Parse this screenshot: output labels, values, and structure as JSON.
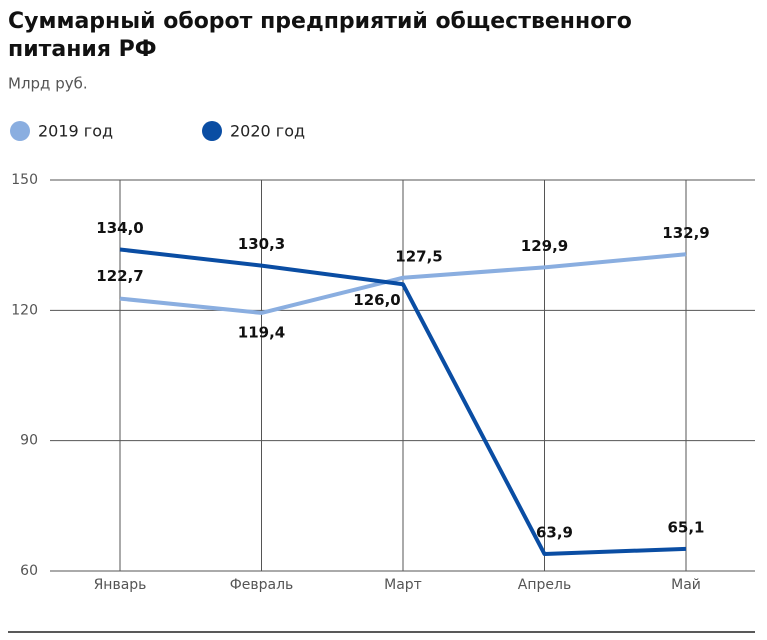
{
  "chart_data": {
    "type": "line",
    "title": "Суммарный оборот предприятий общественного питания РФ",
    "subtitle": "Млрд руб.",
    "categories": [
      "Январь",
      "Февраль",
      "Март",
      "Апрель",
      "Май"
    ],
    "series": [
      {
        "name": "2019 год",
        "color": "#8aaee0",
        "values": [
          122.7,
          119.4,
          127.5,
          129.9,
          132.9
        ],
        "value_labels": [
          "122,7",
          "119,4",
          "127,5",
          "129,9",
          "132,9"
        ]
      },
      {
        "name": "2020 год",
        "color": "#0a4da3",
        "values": [
          134.0,
          130.3,
          126.0,
          63.9,
          65.1
        ],
        "value_labels": [
          "134,0",
          "130,3",
          "126,0",
          "63,9",
          "65,1"
        ]
      }
    ],
    "ylim": [
      60,
      150
    ],
    "yticks": [
      60,
      90,
      120,
      150
    ],
    "grid": true
  }
}
